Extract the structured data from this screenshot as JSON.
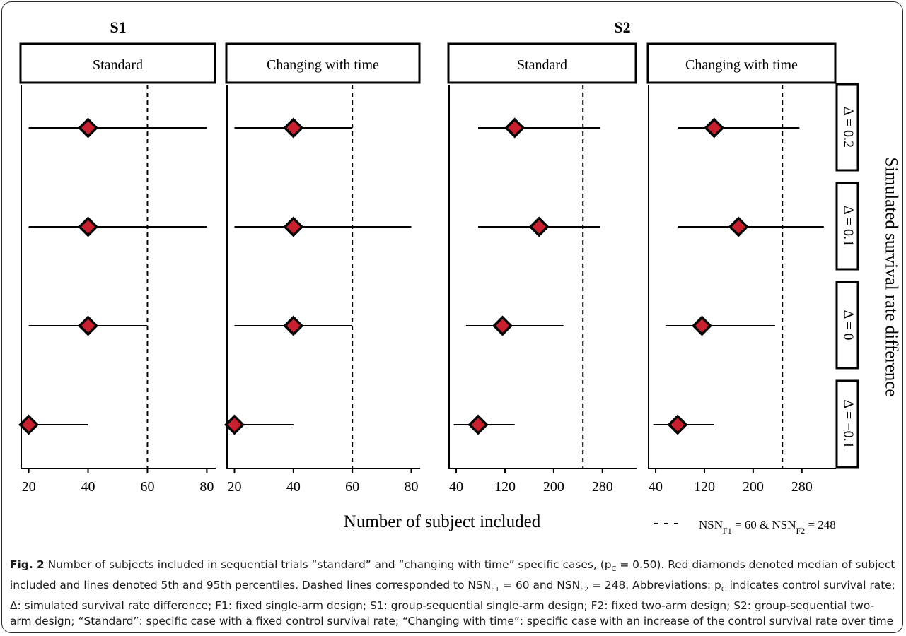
{
  "chart_data": {
    "type": "forest-plot",
    "xlabel": "Number of subject included",
    "ylabel": "Simulated survival rate difference",
    "legend": {
      "text": "NSN",
      "f1_sub": "F1",
      "f1_val": " = 60  &  ",
      "f2_sub": "F2",
      "f2_val": " = 248",
      "position": "bottom-right"
    },
    "groups": [
      {
        "name": "S1",
        "reference": 60,
        "xlim": [
          17,
          83
        ],
        "ticks": [
          20,
          40,
          60,
          80
        ],
        "columns": [
          {
            "name": "Standard",
            "points": [
              {
                "row": "Δ = 0.2",
                "median": 40,
                "p5": 20,
                "p95": 80
              },
              {
                "row": "Δ = 0.1",
                "median": 40,
                "p5": 20,
                "p95": 80
              },
              {
                "row": "Δ = 0",
                "median": 40,
                "p5": 20,
                "p95": 60
              },
              {
                "row": "Δ = −0.1",
                "median": 20,
                "p5": 20,
                "p95": 40
              }
            ]
          },
          {
            "name": "Changing with time",
            "points": [
              {
                "row": "Δ = 0.2",
                "median": 40,
                "p5": 20,
                "p95": 60
              },
              {
                "row": "Δ = 0.1",
                "median": 40,
                "p5": 20,
                "p95": 80
              },
              {
                "row": "Δ = 0",
                "median": 40,
                "p5": 20,
                "p95": 60
              },
              {
                "row": "Δ = −0.1",
                "median": 20,
                "p5": 20,
                "p95": 40
              }
            ]
          }
        ]
      },
      {
        "name": "S2",
        "reference": 248,
        "xlim": [
          26,
          336
        ],
        "ticks": [
          40,
          120,
          200,
          280
        ],
        "columns": [
          {
            "name": "Standard",
            "points": [
              {
                "row": "Δ = 0.2",
                "median": 136,
                "p5": 76,
                "p95": 276
              },
              {
                "row": "Δ = 0.1",
                "median": 176,
                "p5": 76,
                "p95": 276
              },
              {
                "row": "Δ = 0",
                "median": 116,
                "p5": 56,
                "p95": 216
              },
              {
                "row": "Δ = −0.1",
                "median": 76,
                "p5": 36,
                "p95": 136
              }
            ]
          },
          {
            "name": "Changing with time",
            "points": [
              {
                "row": "Δ = 0.2",
                "median": 136,
                "p5": 76,
                "p95": 276
              },
              {
                "row": "Δ = 0.1",
                "median": 176,
                "p5": 76,
                "p95": 316
              },
              {
                "row": "Δ = 0",
                "median": 116,
                "p5": 56,
                "p95": 236
              },
              {
                "row": "Δ = −0.1",
                "median": 76,
                "p5": 36,
                "p95": 136
              }
            ]
          }
        ]
      }
    ],
    "rows": [
      "Δ = 0.2",
      "Δ = 0.1",
      "Δ = 0",
      "Δ = −0.1"
    ],
    "marker_color": "#c8202e",
    "marker_edge_color": "#000000"
  },
  "caption": {
    "fig_label": "Fig. 2",
    "t1": " Number of subjects included in sequential trials “standard” and “changing with time” specific cases, (p",
    "t1_sub": "C",
    "t2": " = 0.50). Red diamonds denoted median of subject included and lines denoted 5th and 95th percentiles. Dashed lines corresponded to NSN",
    "t2_sub": "F1",
    "t3": " = 60 and NSN",
    "t3_sub": "F2",
    "t4": " = 248. Abbreviations: p",
    "t4_sub": "C",
    "t5": " indicates control survival rate; Δ: simulated survival rate difference; F1: fixed single-arm design; S1: group-sequential single-arm design; F2: fixed two-arm design; S2: group-sequential two-arm design; “Standard”: specific case with a fixed control survival rate; “Changing with time”: specific case with an increase of the control survival rate over time"
  }
}
